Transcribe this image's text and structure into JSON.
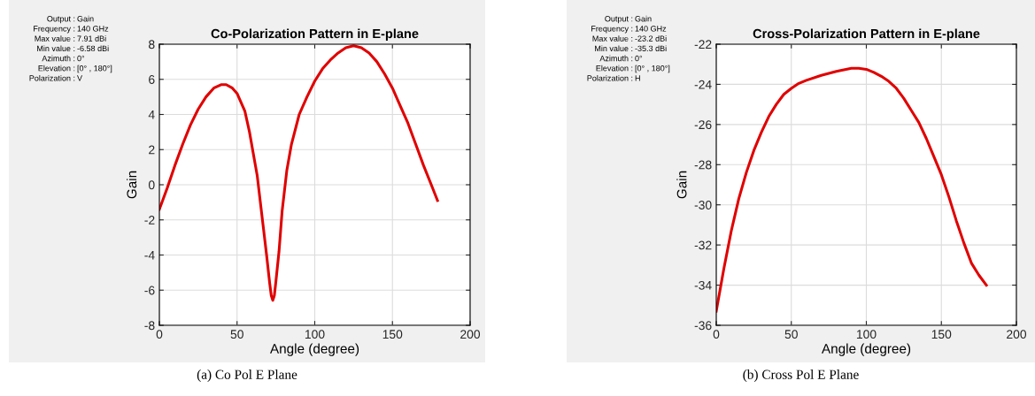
{
  "chart_data": [
    {
      "type": "line",
      "title": "Co-Polarization Pattern in E-plane",
      "xlabel": "Angle (degree)",
      "ylabel": "Gain",
      "annotations": [
        "Output : Gain",
        "Frequency : 140 GHz",
        "Max value : 7.91 dBi",
        "Min value : -6.58 dBi",
        "Azimuth : 0°",
        "Elevation : [0° , 180°]",
        "Polarization : V",
        "(a) Co Pol E Plane"
      ],
      "x": [
        0,
        5,
        10,
        15,
        20,
        25,
        30,
        35,
        40,
        43,
        47,
        50,
        55,
        58,
        60,
        63,
        65,
        67,
        69,
        71,
        72,
        73,
        74,
        75,
        77,
        79,
        82,
        85,
        90,
        95,
        100,
        105,
        110,
        115,
        120,
        125,
        130,
        135,
        140,
        145,
        150,
        155,
        160,
        165,
        170,
        175,
        179
      ],
      "series": [
        {
          "color": "#e00000",
          "values": [
            -1.4,
            -0.2,
            1.1,
            2.3,
            3.4,
            4.3,
            5.0,
            5.5,
            5.7,
            5.7,
            5.5,
            5.2,
            4.2,
            3.0,
            2.0,
            0.5,
            -1.0,
            -2.5,
            -4.0,
            -5.6,
            -6.3,
            -6.58,
            -6.3,
            -5.5,
            -3.8,
            -1.5,
            0.8,
            2.3,
            4.0,
            5.0,
            5.9,
            6.6,
            7.1,
            7.5,
            7.8,
            7.91,
            7.8,
            7.5,
            7.0,
            6.3,
            5.5,
            4.5,
            3.5,
            2.3,
            1.1,
            0.0,
            -0.9
          ]
        }
      ],
      "xlim": [
        0,
        200
      ],
      "xticks": [
        0,
        50,
        100,
        150,
        200
      ],
      "ylim": [
        -8,
        8
      ],
      "yticks": [
        -8,
        -6,
        -4,
        -2,
        0,
        2,
        4,
        6,
        8
      ],
      "grid": true,
      "legend": false,
      "marker": "none",
      "line_style": "solid"
    },
    {
      "type": "line",
      "title": "Cross-Polarization Pattern in E-plane",
      "xlabel": "Angle (degree)",
      "ylabel": "Gain",
      "annotations": [
        "Output : Gain",
        "Frequency : 140 GHz",
        "Max value : -23.2 dBi",
        "Min value : -35.3 dBi",
        "Azimuth : 0°",
        "Elevation : [0° , 180°]",
        "Polarization : H",
        "(b) Cross Pol E Plane"
      ],
      "x": [
        0,
        5,
        10,
        15,
        20,
        25,
        30,
        35,
        40,
        45,
        50,
        55,
        60,
        70,
        80,
        90,
        95,
        100,
        105,
        110,
        115,
        120,
        125,
        130,
        135,
        140,
        145,
        150,
        155,
        160,
        165,
        170,
        175,
        180
      ],
      "series": [
        {
          "color": "#e00000",
          "values": [
            -35.3,
            -33.2,
            -31.3,
            -29.7,
            -28.4,
            -27.3,
            -26.4,
            -25.6,
            -25.0,
            -24.5,
            -24.2,
            -23.95,
            -23.8,
            -23.55,
            -23.35,
            -23.2,
            -23.2,
            -23.25,
            -23.4,
            -23.6,
            -23.85,
            -24.2,
            -24.7,
            -25.3,
            -25.9,
            -26.7,
            -27.6,
            -28.5,
            -29.6,
            -30.8,
            -31.9,
            -32.9,
            -33.5,
            -34.0
          ]
        }
      ],
      "xlim": [
        0,
        200
      ],
      "xticks": [
        0,
        50,
        100,
        150,
        200
      ],
      "ylim": [
        -36,
        -22
      ],
      "yticks": [
        -36,
        -34,
        -32,
        -30,
        -28,
        -26,
        -24,
        -22
      ],
      "grid": true,
      "legend": false,
      "marker": "none",
      "line_style": "solid"
    }
  ]
}
